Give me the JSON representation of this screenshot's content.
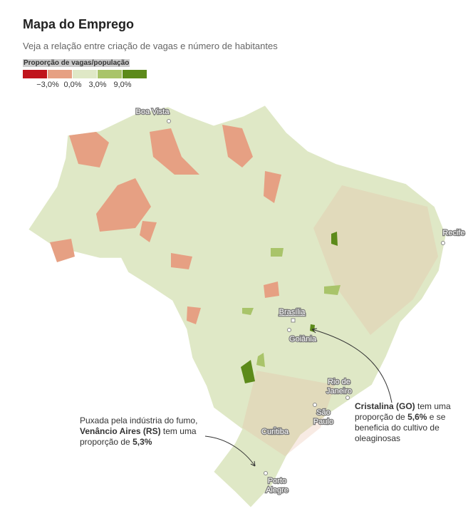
{
  "header": {
    "title": "Mapa do Emprego",
    "subtitle": "Veja a relação entre criação de vagas e número de habitantes"
  },
  "legend": {
    "title": "Proporção de vagas/população",
    "colors": [
      "#c0141c",
      "#e6a083",
      "#dfe8c6",
      "#a9c46a",
      "#5c8a1a"
    ],
    "labels": [
      "−3,0%",
      "0,0%",
      "3,0%",
      "9,0%"
    ]
  },
  "cities": [
    {
      "lines": [
        "Boa Vista"
      ]
    },
    {
      "lines": [
        "Recife"
      ]
    },
    {
      "lines": [
        "Brasília"
      ]
    },
    {
      "lines": [
        "Goiânia"
      ]
    },
    {
      "lines": [
        "Rio de",
        "Janeiro"
      ]
    },
    {
      "lines": [
        "São",
        "Paulo"
      ]
    },
    {
      "lines": [
        "Curitiba"
      ]
    },
    {
      "lines": [
        "Porto",
        "Alegre"
      ]
    }
  ],
  "annotations": [
    {
      "parts": [
        {
          "text": "Puxada pela indústria do fumo, ",
          "bold": false
        },
        {
          "text": "Venâncio Aires (RS)",
          "bold": true
        },
        {
          "text": " tem uma proporção de ",
          "bold": false
        },
        {
          "text": "5,3%",
          "bold": true
        }
      ]
    },
    {
      "parts": [
        {
          "text": "Cristalina (GO)",
          "bold": true
        },
        {
          "text": " tem uma proporção de ",
          "bold": false
        },
        {
          "text": "5,6%",
          "bold": true
        },
        {
          "text": " e se beneficia do cultivo de oleaginosas",
          "bold": false
        }
      ]
    }
  ]
}
